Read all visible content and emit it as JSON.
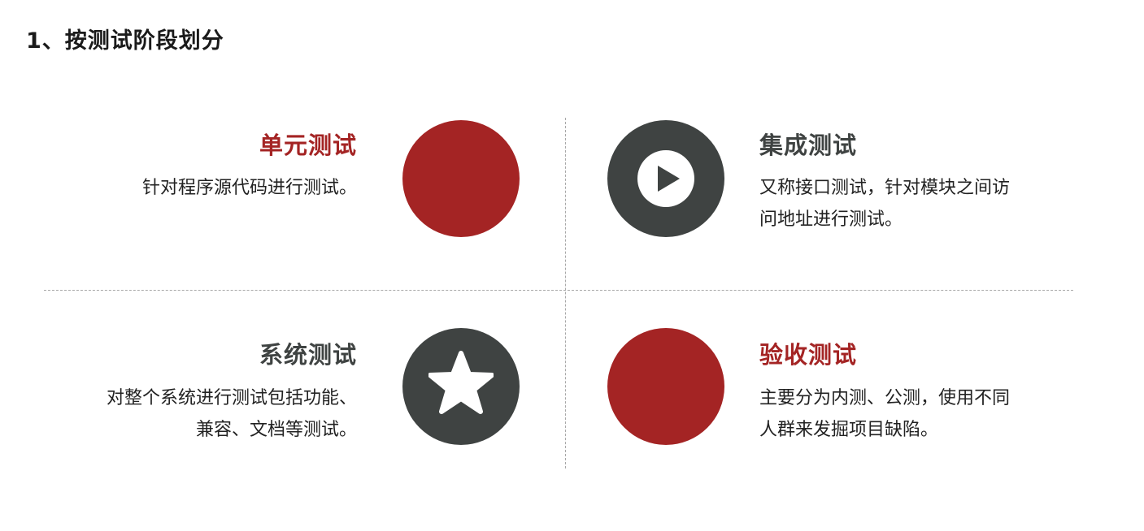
{
  "page_title": "1、按测试阶段划分",
  "quadrants": {
    "unit": {
      "title": "单元测试",
      "desc_lines": [
        "针对程序源代码进行测试。"
      ]
    },
    "integration": {
      "title": "集成测试",
      "desc_lines": [
        "又称接口测试，针对模块之间访",
        "问地址进行测试。"
      ],
      "icon": "play-icon"
    },
    "system": {
      "title": "系统测试",
      "desc_lines": [
        "对整个系统进行测试包括功能、",
        "兼容、文档等测试。"
      ],
      "icon": "star-icon"
    },
    "acceptance": {
      "title": "验收测试",
      "desc_lines": [
        "主要分为内测、公测，使用不同",
        "人群来发掘项目缺陷。"
      ]
    }
  },
  "colors": {
    "accent_red": "#a42424",
    "dark_gray": "#3f4342"
  }
}
